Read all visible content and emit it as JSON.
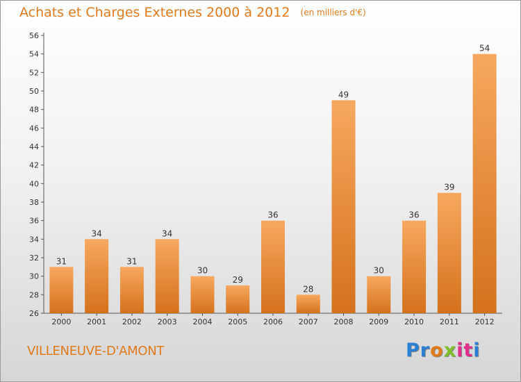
{
  "header": {
    "title": "Achats et Charges Externes 2000 à 2012",
    "unit": "(en milliers d'€)"
  },
  "footer": {
    "town": "VILLENEUVE-D'AMONT",
    "brand_letters": [
      {
        "ch": "P",
        "color": "#2a7fd4"
      },
      {
        "ch": "r",
        "color": "#2a7fd4"
      },
      {
        "ch": "o",
        "color": "#e07a1a"
      },
      {
        "ch": "x",
        "color": "#7fbf2a"
      },
      {
        "ch": "i",
        "color": "#e0308a"
      },
      {
        "ch": "t",
        "color": "#e0308a"
      },
      {
        "ch": "i",
        "color": "#2a7fd4"
      }
    ]
  },
  "colors": {
    "accent": "#e07a1a",
    "bar_top": "#f7a860",
    "bar_bottom": "#d4721c"
  },
  "chart_data": {
    "type": "bar",
    "title": "Achats et Charges Externes 2000 à 2012",
    "subtitle": "(en milliers d'€)",
    "categories": [
      "2000",
      "2001",
      "2002",
      "2003",
      "2004",
      "2005",
      "2006",
      "2007",
      "2008",
      "2009",
      "2010",
      "2011",
      "2012"
    ],
    "values": [
      31,
      34,
      31,
      34,
      30,
      29,
      36,
      28,
      49,
      30,
      36,
      39,
      54
    ],
    "ylim": [
      26,
      56
    ],
    "ytick_step": 2,
    "grid": false,
    "data_labels": true
  }
}
